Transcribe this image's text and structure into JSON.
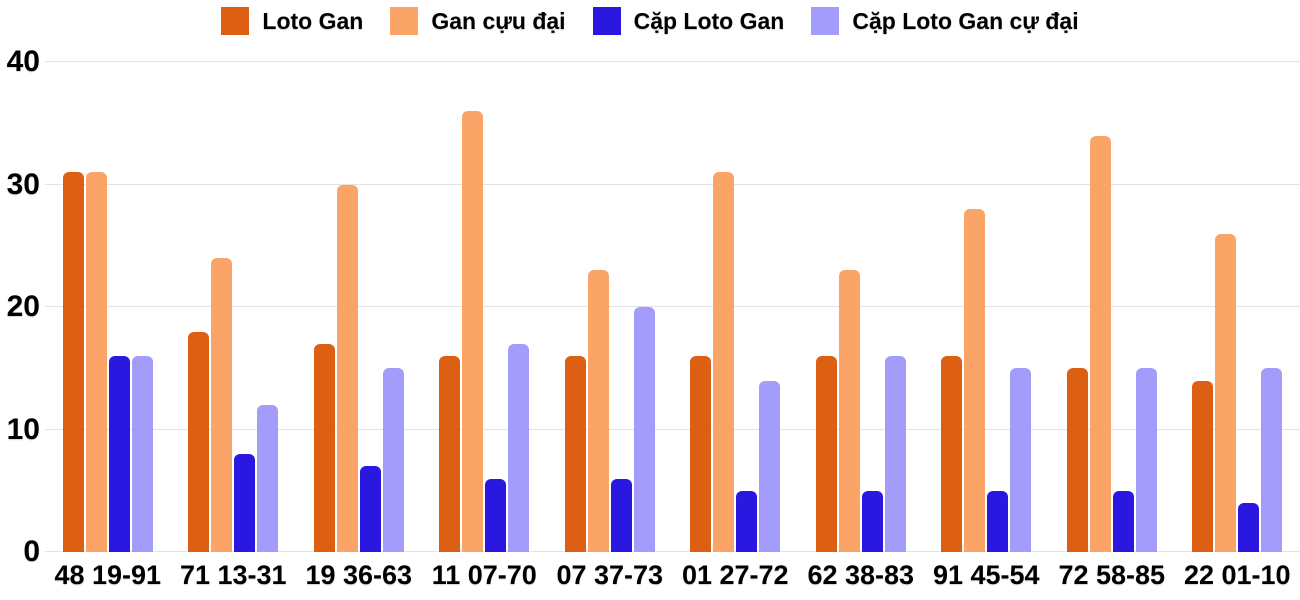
{
  "chart_data": {
    "type": "bar",
    "title": "",
    "xlabel": "",
    "ylabel": "",
    "categories": [
      "48 19-91",
      "71 13-31",
      "19 36-63",
      "11 07-70",
      "07 37-73",
      "01 27-72",
      "62 38-83",
      "91 45-54",
      "72 58-85",
      "22 01-10"
    ],
    "series": [
      {
        "name": "Loto Gan",
        "color": "#dd5f14",
        "values": [
          31,
          18,
          17,
          16,
          16,
          16,
          16,
          16,
          15,
          14
        ]
      },
      {
        "name": "Gan cựu đại",
        "color": "#fba467",
        "values": [
          31,
          24,
          30,
          36,
          23,
          31,
          23,
          28,
          34,
          26
        ]
      },
      {
        "name": "Cặp Loto Gan",
        "color": "#2a17e0",
        "values": [
          16,
          8,
          7,
          6,
          6,
          5,
          5,
          5,
          5,
          4
        ]
      },
      {
        "name": "Cặp Loto Gan cự đại",
        "color": "#a49cfa",
        "values": [
          16,
          12,
          15,
          17,
          20,
          14,
          16,
          15,
          15,
          15
        ]
      }
    ],
    "y_axis": {
      "ticks": [
        0,
        10,
        20,
        30,
        40
      ],
      "min": 0,
      "max": 40
    },
    "grid": true,
    "legend_position": "top"
  },
  "colors": {
    "gridline": "#e3e3e3",
    "text": "#000000",
    "background": "#ffffff"
  }
}
